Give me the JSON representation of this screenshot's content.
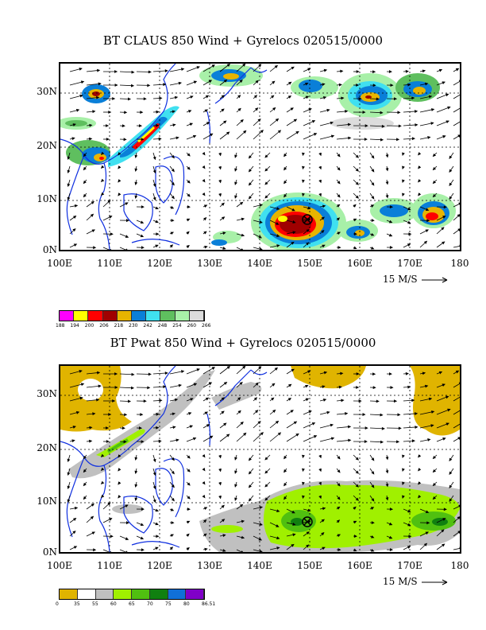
{
  "panels": [
    {
      "title": "BT CLAUS 850 Wind + Gyrelocs 020515/0000",
      "lat_labels": [
        "30N",
        "20N",
        "10N",
        "0N"
      ],
      "lon_labels": [
        "100E",
        "110E",
        "120E",
        "130E",
        "140E",
        "150E",
        "160E",
        "170E",
        "180"
      ],
      "scale_label": "15 M/S",
      "legend": {
        "colors": [
          "#ff00ff",
          "#ffff00",
          "#ff0000",
          "#a00000",
          "#e8b400",
          "#0a7fd8",
          "#40e0f0",
          "#5fbf5f",
          "#a8f0a8",
          "#dcdcdc"
        ],
        "ticks": [
          "188",
          "194",
          "200",
          "206",
          "218",
          "230",
          "242",
          "248",
          "254",
          "260",
          "266"
        ]
      }
    },
    {
      "title": "BT Pwat 850 Wind + Gyrelocs 020515/0000",
      "lat_labels": [
        "30N",
        "20N",
        "10N",
        "0N"
      ],
      "lon_labels": [
        "100E",
        "110E",
        "120E",
        "130E",
        "140E",
        "150E",
        "160E",
        "170E",
        "180"
      ],
      "scale_label": "15 M/S",
      "legend": {
        "colors": [
          "#e0b400",
          "#ffffff",
          "#c0c0c0",
          "#a0f000",
          "#50c010",
          "#108010",
          "#1070d8",
          "#8000c8"
        ],
        "ticks": [
          "0",
          "35",
          "55",
          "60",
          "65",
          "70",
          "75",
          "80",
          "86.51"
        ]
      }
    }
  ],
  "gyre_marker": {
    "lon": 150,
    "lat": 6
  }
}
